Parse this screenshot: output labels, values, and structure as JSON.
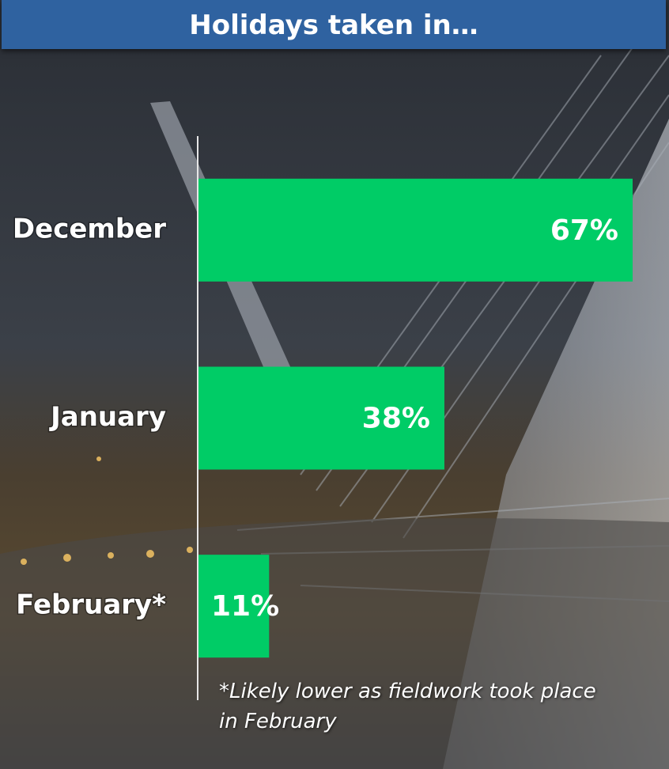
{
  "chart_data": {
    "type": "bar",
    "orientation": "horizontal",
    "title": "Holidays taken in…",
    "categories": [
      "December",
      "January",
      "February*"
    ],
    "values": [
      67,
      38,
      11
    ],
    "value_labels": [
      "67%",
      "38%",
      "11%"
    ],
    "color": "#00cc66",
    "note": "*Likely lower as fieldwork took place in February"
  }
}
